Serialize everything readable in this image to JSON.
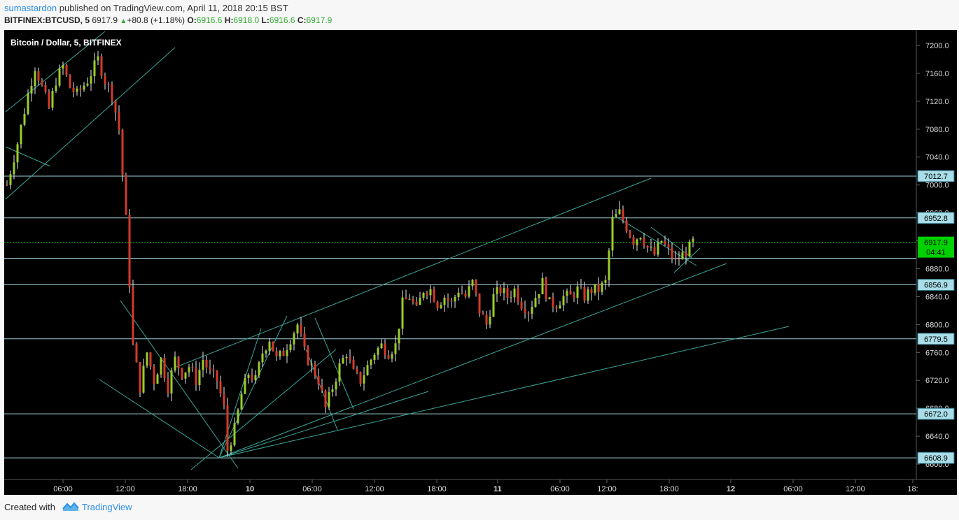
{
  "header": {
    "author": "sumastardon",
    "published": " published on TradingView.com, April 11, 2018 20:15 BST",
    "symbol": "BITFINEX:BTCUSD, 5",
    "price": "6917.9",
    "change": "+80.8 (+1.18%)",
    "open_label": "O:",
    "open": "6916.6",
    "high_label": "H:",
    "high": "6918.0",
    "low_label": "L:",
    "low": "6916.6",
    "close_label": "C:",
    "close": "6917.9"
  },
  "chart_title": "Bitcoin / Dollar, 5, BITFINEX",
  "footer": {
    "created_with": "Created with",
    "brand": "TradingView"
  },
  "colors": {
    "background": "#000000",
    "up_candle": "#9ccc2a",
    "down_candle": "#d43b2a",
    "trendline": "#3aa69a",
    "hline": "#9ecfd8",
    "current_price": "#00d100"
  },
  "chart_data": {
    "type": "candlestick",
    "title": "Bitcoin / Dollar, 5, BITFINEX",
    "ylim": [
      6592,
      7212
    ],
    "y_ticks": [
      "7200.0",
      "7160.0",
      "7120.0",
      "7080.0",
      "7040.0",
      "7000.0",
      "6960.0",
      "6920.0",
      "6880.0",
      "6840.0",
      "6800.0",
      "6760.0",
      "6720.0",
      "6680.0",
      "6640.0",
      "6600.0"
    ],
    "x_ticks": [
      "06:00",
      "12:00",
      "18:00",
      "10",
      "06:00",
      "12:00",
      "18:00",
      "11",
      "06:00",
      "12:00",
      "18:00",
      "12",
      "06:00",
      "12:00",
      "18:"
    ],
    "price_levels": [
      "7012.7",
      "6952.8",
      "6856.9",
      "6779.5",
      "6672.0",
      "6608.9"
    ],
    "current_price": "6917.9",
    "countdown": "04:41",
    "price_path": [
      [
        0,
        7000
      ],
      [
        3,
        7060
      ],
      [
        6,
        7130
      ],
      [
        8,
        7170
      ],
      [
        10,
        7140
      ],
      [
        12,
        7110
      ],
      [
        14,
        7150
      ],
      [
        16,
        7170
      ],
      [
        18,
        7140
      ],
      [
        20,
        7130
      ],
      [
        23,
        7150
      ],
      [
        26,
        7180
      ],
      [
        28,
        7150
      ],
      [
        30,
        7130
      ],
      [
        32,
        7080
      ],
      [
        34,
        6950
      ],
      [
        36,
        6770
      ],
      [
        38,
        6710
      ],
      [
        40,
        6760
      ],
      [
        42,
        6720
      ],
      [
        44,
        6750
      ],
      [
        46,
        6710
      ],
      [
        48,
        6750
      ],
      [
        50,
        6730
      ],
      [
        52,
        6740
      ],
      [
        54,
        6720
      ],
      [
        56,
        6750
      ],
      [
        58,
        6730
      ],
      [
        60,
        6720
      ],
      [
        62,
        6680
      ],
      [
        63,
        6620
      ],
      [
        65,
        6650
      ],
      [
        67,
        6700
      ],
      [
        69,
        6730
      ],
      [
        71,
        6720
      ],
      [
        73,
        6760
      ],
      [
        75,
        6780
      ],
      [
        77,
        6750
      ],
      [
        79,
        6760
      ],
      [
        81,
        6780
      ],
      [
        83,
        6800
      ],
      [
        85,
        6760
      ],
      [
        87,
        6740
      ],
      [
        89,
        6720
      ],
      [
        91,
        6680
      ],
      [
        93,
        6710
      ],
      [
        95,
        6740
      ],
      [
        97,
        6760
      ],
      [
        99,
        6730
      ],
      [
        101,
        6720
      ],
      [
        103,
        6740
      ],
      [
        105,
        6760
      ],
      [
        107,
        6770
      ],
      [
        109,
        6760
      ],
      [
        111,
        6770
      ],
      [
        113,
        6830
      ],
      [
        115,
        6840
      ],
      [
        117,
        6820
      ],
      [
        119,
        6850
      ],
      [
        121,
        6850
      ],
      [
        123,
        6830
      ],
      [
        125,
        6840
      ],
      [
        127,
        6830
      ],
      [
        129,
        6850
      ],
      [
        131,
        6840
      ],
      [
        133,
        6860
      ],
      [
        135,
        6820
      ],
      [
        137,
        6800
      ],
      [
        139,
        6840
      ],
      [
        141,
        6850
      ],
      [
        143,
        6840
      ],
      [
        145,
        6850
      ],
      [
        147,
        6830
      ],
      [
        149,
        6820
      ],
      [
        151,
        6840
      ],
      [
        153,
        6860
      ],
      [
        155,
        6830
      ],
      [
        157,
        6830
      ],
      [
        159,
        6840
      ],
      [
        161,
        6840
      ],
      [
        163,
        6850
      ],
      [
        165,
        6840
      ],
      [
        167,
        6850
      ],
      [
        169,
        6850
      ],
      [
        171,
        6860
      ],
      [
        173,
        6950
      ],
      [
        175,
        6960
      ],
      [
        177,
        6940
      ],
      [
        179,
        6920
      ],
      [
        181,
        6930
      ],
      [
        183,
        6910
      ],
      [
        185,
        6900
      ],
      [
        187,
        6920
      ],
      [
        189,
        6905
      ],
      [
        191,
        6890
      ],
      [
        193,
        6900
      ],
      [
        195,
        6910
      ],
      [
        196,
        6917.9
      ]
    ]
  }
}
